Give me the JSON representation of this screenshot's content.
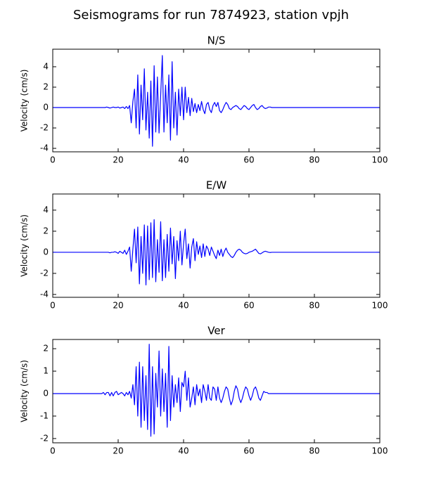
{
  "title": "Seismograms for run 7874923, station vpjh",
  "chart_data": [
    {
      "type": "line",
      "title": "N/S",
      "ylabel": "Velocity (cm/s)",
      "color": "#0000ff",
      "xlim": [
        0,
        100
      ],
      "xticks": [
        0,
        20,
        40,
        60,
        80,
        100
      ],
      "ylim": [
        -4.34,
        5.72
      ],
      "yticks": [
        -4,
        -2,
        0,
        2,
        4
      ],
      "x": [
        0,
        5,
        10,
        15,
        15.5,
        16,
        16.5,
        17,
        17.5,
        18,
        18.5,
        19,
        19.5,
        20,
        20.5,
        21,
        21.5,
        22,
        22.5,
        23,
        23.5,
        24,
        24.5,
        25,
        25.5,
        26,
        26.5,
        27,
        27.5,
        28,
        28.5,
        29,
        29.5,
        30,
        30.5,
        31,
        31.5,
        32,
        32.5,
        33,
        33.5,
        34,
        34.5,
        35,
        35.5,
        36,
        36.5,
        37,
        37.5,
        38,
        38.5,
        39,
        39.5,
        40,
        40.5,
        41,
        41.5,
        42,
        42.5,
        43,
        43.5,
        44,
        44.5,
        45,
        45.5,
        46,
        46.5,
        47,
        47.5,
        48,
        48.5,
        49,
        49.5,
        50,
        50.5,
        51,
        51.5,
        52,
        52.5,
        53,
        53.5,
        54,
        54.5,
        55,
        55.5,
        56,
        56.5,
        57,
        57.5,
        58,
        58.5,
        59,
        59.5,
        60,
        60.5,
        61,
        61.5,
        62,
        62.5,
        63,
        63.5,
        64,
        64.5,
        65,
        65.5,
        66,
        66.5,
        67,
        67.5,
        68,
        68.5,
        69,
        69.5,
        70,
        70.5,
        71,
        71.5,
        72,
        75,
        80,
        85,
        90,
        95,
        100
      ],
      "values": [
        0,
        0,
        0,
        0,
        0,
        0,
        0.05,
        0,
        -0.05,
        0,
        0.05,
        0,
        0,
        0.05,
        -0.05,
        0,
        0.05,
        -0.1,
        0.1,
        -0.1,
        0.2,
        -1.5,
        0.6,
        1.8,
        -2.0,
        3.2,
        -2.6,
        2.2,
        -1.2,
        3.8,
        -2.2,
        1.5,
        -3.0,
        2.6,
        -3.8,
        4.1,
        -2.4,
        3.0,
        -2.5,
        1.2,
        5.1,
        -2.4,
        2.2,
        -1.5,
        3.2,
        -3.2,
        4.5,
        -2.0,
        1.5,
        -2.7,
        1.8,
        -0.8,
        2.0,
        -1.2,
        2.0,
        -0.5,
        1.0,
        -0.8,
        0.9,
        -0.4,
        0.4,
        -0.5,
        0.3,
        -0.3,
        0.6,
        -0.2,
        -0.6,
        0.3,
        0.5,
        -0.2,
        -0.5,
        0.2,
        0.5,
        0.1,
        0.5,
        -0.3,
        -0.5,
        -0.2,
        0.2,
        0.5,
        0.3,
        -0.1,
        -0.2,
        0,
        0.1,
        0.2,
        0.1,
        -0.1,
        -0.2,
        0,
        0.2,
        0.1,
        -0.1,
        -0.2,
        0,
        0.2,
        0.3,
        0,
        -0.2,
        -0.1,
        0.1,
        0.2,
        0,
        -0.1,
        -0.05,
        0.05,
        0.05,
        0,
        0,
        0,
        0,
        0,
        0,
        0,
        0,
        0,
        0,
        0,
        0,
        0,
        0,
        0,
        0,
        0
      ]
    },
    {
      "type": "line",
      "title": "E/W",
      "ylabel": "Velocity (cm/s)",
      "color": "#0000ff",
      "xlim": [
        0,
        100
      ],
      "xticks": [
        0,
        20,
        40,
        60,
        80,
        100
      ],
      "ylim": [
        -4.27,
        5.53
      ],
      "yticks": [
        -4,
        -2,
        0,
        2,
        4
      ],
      "x": [
        0,
        5,
        10,
        15,
        15.5,
        16,
        16.5,
        17,
        17.5,
        18,
        18.5,
        19,
        19.5,
        20,
        20.5,
        21,
        21.5,
        22,
        22.5,
        23,
        23.5,
        24,
        24.5,
        25,
        25.5,
        26,
        26.5,
        27,
        27.5,
        28,
        28.5,
        29,
        29.5,
        30,
        30.5,
        31,
        31.5,
        32,
        32.5,
        33,
        33.5,
        34,
        34.5,
        35,
        35.5,
        36,
        36.5,
        37,
        37.5,
        38,
        38.5,
        39,
        39.5,
        40,
        40.5,
        41,
        41.5,
        42,
        42.5,
        43,
        43.5,
        44,
        44.5,
        45,
        45.5,
        46,
        46.5,
        47,
        47.5,
        48,
        48.5,
        49,
        49.5,
        50,
        50.5,
        51,
        51.5,
        52,
        52.5,
        53,
        53.5,
        54,
        54.5,
        55,
        55.5,
        56,
        56.5,
        57,
        57.5,
        58,
        58.5,
        59,
        59.5,
        60,
        60.5,
        61,
        61.5,
        62,
        62.5,
        63,
        63.5,
        64,
        64.5,
        65,
        65.5,
        66,
        66.5,
        67,
        67.5,
        68,
        68.5,
        69,
        69.5,
        70,
        70.5,
        71,
        71.5,
        72,
        75,
        80,
        85,
        90,
        95,
        100
      ],
      "values": [
        0,
        0,
        0,
        0,
        0,
        0,
        0,
        0,
        -0.05,
        0,
        0,
        0.05,
        0,
        -0.1,
        0.1,
        0,
        -0.1,
        0.2,
        -0.2,
        0.1,
        0.5,
        -1.8,
        0.3,
        2.2,
        -1.0,
        2.4,
        -3.0,
        1.5,
        -2.0,
        2.6,
        -3.1,
        2.5,
        -2.6,
        2.8,
        -2.4,
        3.1,
        -2.8,
        1.2,
        -1.9,
        2.9,
        -2.7,
        1.2,
        -2.4,
        1.7,
        -1.8,
        2.3,
        -1.1,
        1.5,
        -2.5,
        1.1,
        -0.8,
        2.0,
        -1.2,
        0.8,
        2.2,
        -0.6,
        0.8,
        -1.5,
        0.5,
        1.3,
        -0.8,
        1.0,
        -0.2,
        0.6,
        -0.5,
        0.8,
        -0.4,
        0.6,
        0.3,
        -0.3,
        0.5,
        0.1,
        -0.3,
        -0.6,
        0.2,
        -0.3,
        0.3,
        -0.4,
        0.1,
        0.4,
        0,
        -0.2,
        -0.4,
        -0.5,
        -0.3,
        0,
        0.2,
        0.3,
        0.2,
        0,
        -0.1,
        -0.15,
        -0.1,
        0,
        0.05,
        0.1,
        0.2,
        0.3,
        0.1,
        -0.1,
        -0.15,
        -0.05,
        0.05,
        0.1,
        0.05,
        0,
        -0.02,
        0,
        0,
        0,
        0,
        0,
        0,
        0,
        0,
        0,
        0,
        0,
        0,
        0,
        0,
        0,
        0,
        0
      ]
    },
    {
      "type": "line",
      "title": "Ver",
      "ylabel": "Velocity (cm/s)",
      "color": "#0000ff",
      "xlim": [
        0,
        100
      ],
      "xticks": [
        0,
        20,
        40,
        60,
        80,
        100
      ],
      "ylim": [
        -2.19,
        2.41
      ],
      "yticks": [
        -2,
        -1,
        0,
        1,
        2
      ],
      "x": [
        0,
        5,
        10,
        15,
        15.5,
        16,
        16.5,
        17,
        17.5,
        18,
        18.5,
        19,
        19.5,
        20,
        20.5,
        21,
        21.5,
        22,
        22.5,
        23,
        23.5,
        24,
        24.5,
        25,
        25.5,
        26,
        26.5,
        27,
        27.5,
        28,
        28.5,
        29,
        29.5,
        30,
        30.5,
        31,
        31.5,
        32,
        32.5,
        33,
        33.5,
        34,
        34.5,
        35,
        35.5,
        36,
        36.5,
        37,
        37.5,
        38,
        38.5,
        39,
        39.5,
        40,
        40.5,
        41,
        41.5,
        42,
        42.5,
        43,
        43.5,
        44,
        44.5,
        45,
        45.5,
        46,
        46.5,
        47,
        47.5,
        48,
        48.5,
        49,
        49.5,
        50,
        50.5,
        51,
        51.5,
        52,
        52.5,
        53,
        53.5,
        54,
        54.5,
        55,
        55.5,
        56,
        56.5,
        57,
        57.5,
        58,
        58.5,
        59,
        59.5,
        60,
        60.5,
        61,
        61.5,
        62,
        62.5,
        63,
        63.5,
        64,
        64.5,
        65,
        65.5,
        66,
        66.5,
        67,
        67.5,
        68,
        68.5,
        69,
        69.5,
        70,
        70.5,
        71,
        71.5,
        72,
        75,
        80,
        85,
        90,
        95,
        100
      ],
      "values": [
        0,
        0,
        0,
        0,
        0.05,
        -0.05,
        0.05,
        0.05,
        -0.1,
        0.05,
        -0.1,
        0.05,
        0.1,
        -0.05,
        0,
        0.05,
        0,
        -0.1,
        0.05,
        -0.05,
        0.1,
        -0.2,
        0.4,
        -0.5,
        1.2,
        -1.0,
        1.4,
        -1.5,
        1.2,
        -1.2,
        0.8,
        -1.6,
        2.2,
        -1.9,
        1.2,
        -1.8,
        0.9,
        -0.6,
        1.9,
        -1.0,
        1.1,
        -0.8,
        0.9,
        -1.5,
        2.1,
        -1.2,
        0.8,
        -0.6,
        0.4,
        -0.4,
        0.7,
        -0.8,
        0.5,
        0.3,
        1.0,
        -0.3,
        0.7,
        -0.6,
        -0.2,
        0.3,
        -0.5,
        0.4,
        -0.1,
        0.2,
        -0.4,
        0.4,
        0.1,
        -0.3,
        0.4,
        -0.2,
        -0.3,
        0.3,
        0.2,
        -0.3,
        0.3,
        -0.2,
        -0.4,
        -0.2,
        0.1,
        0.3,
        0.2,
        -0.2,
        -0.5,
        -0.3,
        0.1,
        0.35,
        0.2,
        -0.2,
        -0.4,
        -0.2,
        0.1,
        0.3,
        0.2,
        -0.1,
        -0.3,
        -0.1,
        0.2,
        0.3,
        0.1,
        -0.2,
        -0.3,
        -0.1,
        0.1,
        0.05,
        0.05,
        0,
        0,
        0,
        0,
        0,
        0,
        0,
        0,
        0,
        0,
        0,
        0,
        0,
        0,
        0,
        0,
        0,
        0,
        0
      ]
    }
  ]
}
